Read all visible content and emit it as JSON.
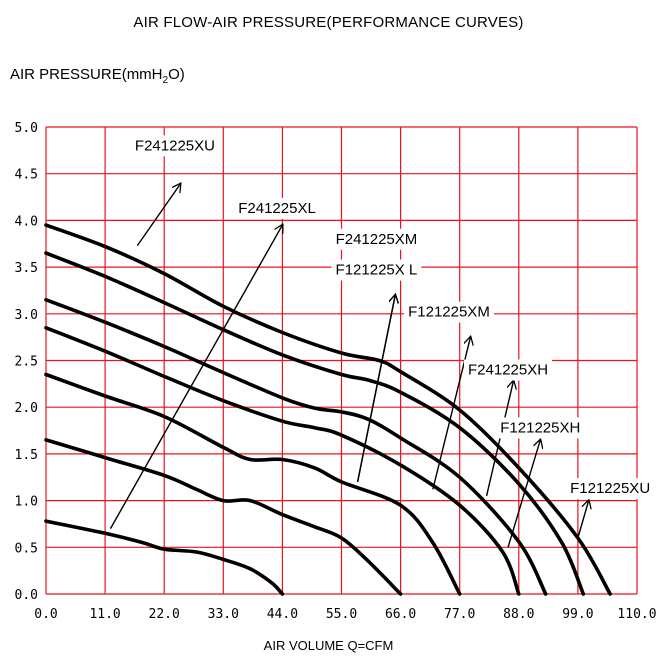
{
  "chart_data": {
    "type": "line",
    "title": "AIR FLOW-AIR PRESSURE(PERFORMANCE CURVES)",
    "ylabel_prefix": "AIR PRESSURE(mmH",
    "ylabel_sub": "2",
    "ylabel_suffix": "O)",
    "xlabel": "AIR VOLUME Q=CFM",
    "xlim": [
      0,
      110
    ],
    "ylim": [
      0,
      5
    ],
    "grid": true,
    "grid_color": "#e8141c",
    "line_color": "#000000",
    "x_ticks": [
      "0.0",
      "11.0",
      "22.0",
      "33.0",
      "44.0",
      "55.0",
      "66.0",
      "77.0",
      "88.0",
      "99.0",
      "110.0"
    ],
    "y_ticks": [
      "0.0",
      "0.5",
      "1.0",
      "1.5",
      "2.0",
      "2.5",
      "3.0",
      "3.5",
      "4.0",
      "4.5",
      "5.0"
    ],
    "series": [
      {
        "name": "F241225XU",
        "points": [
          [
            0,
            3.95
          ],
          [
            11,
            3.72
          ],
          [
            22,
            3.43
          ],
          [
            33,
            3.08
          ],
          [
            44,
            2.8
          ],
          [
            55,
            2.58
          ],
          [
            62,
            2.5
          ],
          [
            66,
            2.38
          ],
          [
            77,
            1.97
          ],
          [
            88,
            1.35
          ],
          [
            99,
            0.6
          ],
          [
            105,
            0.0
          ]
        ]
      },
      {
        "name": "F241225XL",
        "points": [
          [
            0,
            3.65
          ],
          [
            11,
            3.4
          ],
          [
            22,
            3.12
          ],
          [
            33,
            2.83
          ],
          [
            44,
            2.56
          ],
          [
            55,
            2.35
          ],
          [
            60,
            2.29
          ],
          [
            66,
            2.16
          ],
          [
            77,
            1.78
          ],
          [
            88,
            1.18
          ],
          [
            96,
            0.55
          ],
          [
            100,
            0.0
          ]
        ]
      },
      {
        "name": "F241225XM",
        "points": [
          [
            0,
            3.15
          ],
          [
            11,
            2.91
          ],
          [
            22,
            2.65
          ],
          [
            33,
            2.37
          ],
          [
            44,
            2.1
          ],
          [
            50,
            1.99
          ],
          [
            55,
            1.95
          ],
          [
            60,
            1.87
          ],
          [
            66,
            1.67
          ],
          [
            77,
            1.25
          ],
          [
            88,
            0.56
          ],
          [
            93,
            0.0
          ]
        ]
      },
      {
        "name": "F121225X L",
        "points": [
          [
            0,
            2.85
          ],
          [
            11,
            2.6
          ],
          [
            22,
            2.33
          ],
          [
            33,
            2.07
          ],
          [
            44,
            1.85
          ],
          [
            50,
            1.78
          ],
          [
            55,
            1.7
          ],
          [
            66,
            1.38
          ],
          [
            77,
            0.95
          ],
          [
            85,
            0.45
          ],
          [
            88,
            0.0
          ]
        ]
      },
      {
        "name": "F121225XM",
        "points": [
          [
            0,
            2.35
          ],
          [
            11,
            2.12
          ],
          [
            22,
            1.9
          ],
          [
            33,
            1.57
          ],
          [
            38,
            1.44
          ],
          [
            44,
            1.44
          ],
          [
            50,
            1.35
          ],
          [
            55,
            1.2
          ],
          [
            66,
            0.95
          ],
          [
            72,
            0.55
          ],
          [
            77,
            0.0
          ]
        ]
      },
      {
        "name": "F241225XH",
        "points": [
          [
            0,
            1.65
          ],
          [
            11,
            1.46
          ],
          [
            22,
            1.27
          ],
          [
            28,
            1.12
          ],
          [
            33,
            1.0
          ],
          [
            38,
            1.0
          ],
          [
            44,
            0.85
          ],
          [
            50,
            0.72
          ],
          [
            55,
            0.6
          ],
          [
            60,
            0.35
          ],
          [
            66,
            0.0
          ]
        ]
      },
      {
        "name": "F121225XH",
        "points": [
          [
            0,
            0.78
          ],
          [
            11,
            0.65
          ],
          [
            18,
            0.55
          ],
          [
            22,
            0.48
          ],
          [
            28,
            0.45
          ],
          [
            33,
            0.37
          ],
          [
            38,
            0.27
          ],
          [
            42,
            0.12
          ],
          [
            44,
            0.0
          ]
        ]
      }
    ],
    "annotations": [
      {
        "label": "F241225XU",
        "text_at": [
          24,
          4.75
        ],
        "arrow": [
          [
            17,
            3.73
          ],
          [
            25,
            4.39
          ]
        ]
      },
      {
        "label": "F241225XL",
        "text_at": [
          43,
          4.08
        ],
        "arrow": [
          [
            12,
            0.7
          ],
          [
            44,
            3.95
          ]
        ]
      },
      {
        "name": "annotation-f241225xm",
        "label": "F241225XM",
        "text_at": [
          61.5,
          3.75
        ],
        "arrow": [
          [
            58,
            1.2
          ],
          [
            65,
            3.2
          ]
        ]
      },
      {
        "label": "F121225X L",
        "text_at": [
          61.5,
          3.42
        ],
        "arrow": [
          [
            58,
            1.2
          ],
          [
            65,
            3.2
          ]
        ]
      },
      {
        "label": "F121225XM",
        "text_at": [
          75,
          2.97
        ],
        "arrow": [
          [
            72,
            1.12
          ],
          [
            79,
            2.75
          ]
        ]
      },
      {
        "label": "F241225XH",
        "text_at": [
          86,
          2.35
        ],
        "arrow": [
          [
            82,
            1.05
          ],
          [
            87,
            2.28
          ]
        ]
      },
      {
        "label": "F121225XH",
        "text_at": [
          92,
          1.73
        ],
        "arrow": [
          [
            86,
            0.5
          ],
          [
            92,
            1.65
          ]
        ]
      },
      {
        "label": "F121225XU",
        "text_at": [
          105,
          1.08
        ],
        "arrow": [
          [
            99,
            0.6
          ],
          [
            101,
            1.0
          ]
        ]
      }
    ]
  }
}
